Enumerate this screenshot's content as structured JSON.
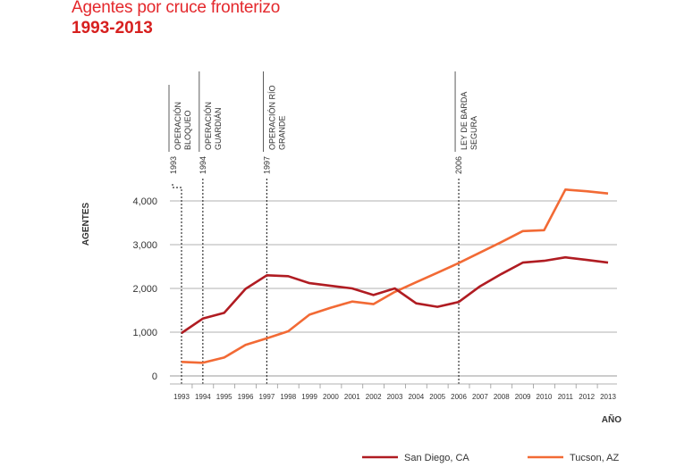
{
  "header": {
    "title": "Agentes por cruce fronterizo",
    "subtitle": "1993-2013"
  },
  "chart_data": {
    "type": "line",
    "title": "Agentes por cruce fronterizo",
    "subtitle": "1993-2013",
    "xlabel": "AÑO",
    "ylabel": "AGENTES",
    "x": [
      1993,
      1994,
      1995,
      1996,
      1997,
      1998,
      1999,
      2000,
      2001,
      2002,
      2003,
      2004,
      2005,
      2006,
      2007,
      2008,
      2009,
      2010,
      2011,
      2012,
      2013
    ],
    "x_tick_labels": [
      "1993",
      "1994",
      "1995",
      "1996",
      "1997",
      "1998",
      "1999",
      "2000",
      "2001",
      "2002",
      "2003",
      "2004",
      "2005",
      "2006",
      "2007",
      "2008",
      "2009",
      "2010",
      "2011",
      "2012",
      "2013"
    ],
    "ylim": [
      0,
      4500
    ],
    "y_ticks": [
      0,
      1000,
      2000,
      3000,
      4000
    ],
    "y_tick_labels": [
      "0",
      "1,000",
      "2,000",
      "3,000",
      "4,000"
    ],
    "grid": true,
    "legend_position": "bottom",
    "series": [
      {
        "name": "San Diego, CA",
        "color": "#b01c22",
        "values": [
          980,
          1310,
          1440,
          1990,
          2300,
          2280,
          2120,
          2060,
          2000,
          1850,
          2000,
          1660,
          1580,
          1690,
          2050,
          2330,
          2590,
          2630,
          2710,
          2650,
          2590
        ]
      },
      {
        "name": "Tucson, AZ",
        "color": "#f26a35",
        "values": [
          320,
          300,
          420,
          710,
          860,
          1020,
          1400,
          1560,
          1700,
          1640,
          1920,
          2140,
          2360,
          2580,
          2820,
          3060,
          3310,
          3330,
          4260,
          4220,
          4170
        ]
      }
    ],
    "annotations": [
      {
        "year_label": "1993",
        "x": 1993,
        "text": [
          "OPERACIÓN",
          "BLOQUEO"
        ]
      },
      {
        "year_label": "1994",
        "x": 1994,
        "text": [
          "OPERACIÓN",
          "GUARDIÁN"
        ]
      },
      {
        "year_label": "1997",
        "x": 1997,
        "text": [
          "OPERACIÓN RÍO",
          "GRANDE"
        ]
      },
      {
        "year_label": "2006",
        "x": 2006,
        "text": [
          "LEY DE BARDA",
          "SEGURA"
        ]
      }
    ]
  }
}
